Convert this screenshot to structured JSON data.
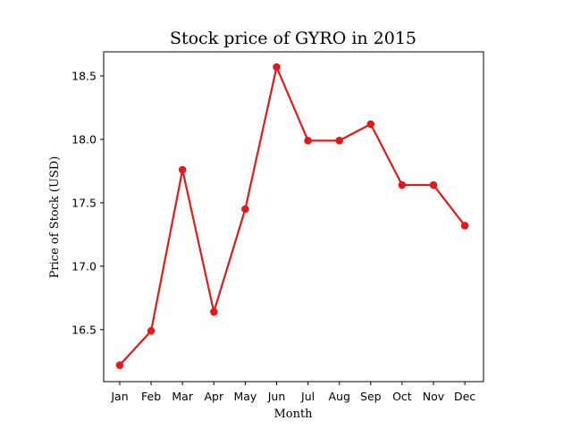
{
  "chart_data": {
    "type": "line",
    "title": "Stock price of GYRO in 2015",
    "xlabel": "Month",
    "ylabel": "Price of Stock (USD)",
    "categories": [
      "Jan",
      "Feb",
      "Mar",
      "Apr",
      "May",
      "Jun",
      "Jul",
      "Aug",
      "Sep",
      "Oct",
      "Nov",
      "Dec"
    ],
    "series": [
      {
        "values": [
          16.22,
          16.49,
          17.76,
          16.64,
          17.45,
          18.57,
          17.99,
          17.99,
          18.12,
          17.64,
          17.64,
          17.32
        ]
      }
    ],
    "yticks": [
      16.5,
      17.0,
      17.5,
      18.0,
      18.5
    ],
    "ytick_labels": [
      "16.5",
      "17.0",
      "17.5",
      "18.0",
      "18.5"
    ],
    "ylim": [
      16.09,
      18.69
    ],
    "line_color": "#e31a1c",
    "marker": "circle",
    "grid": false,
    "legend": "none"
  }
}
